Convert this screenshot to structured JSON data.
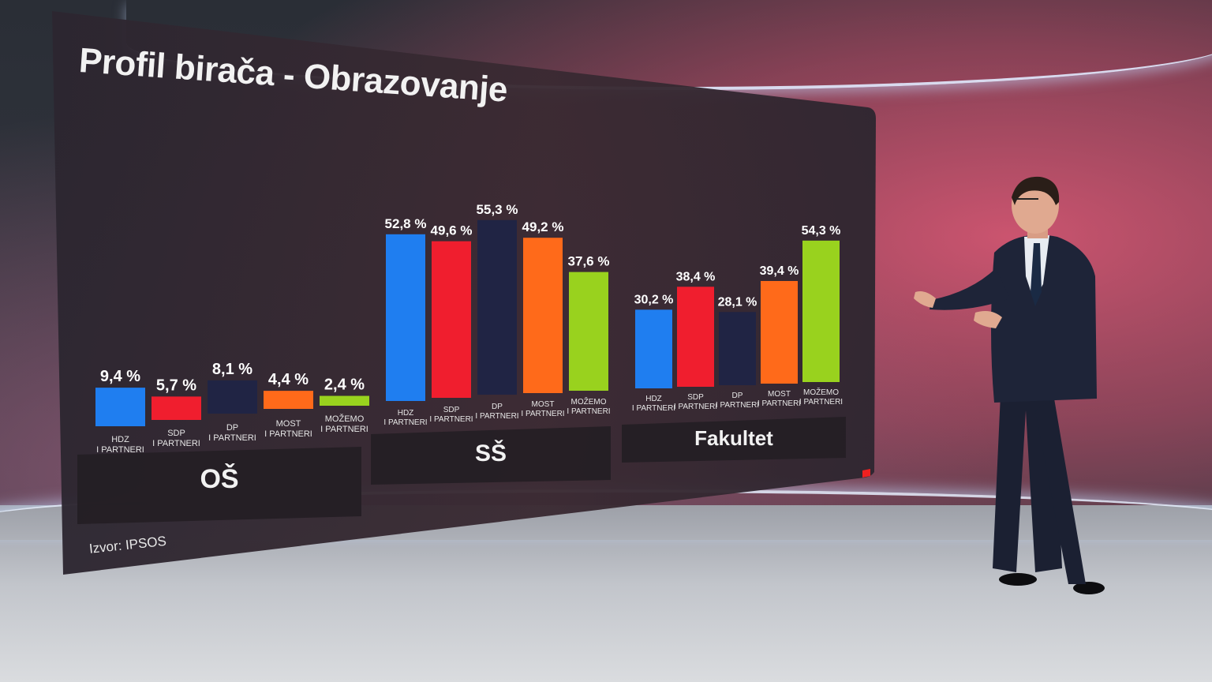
{
  "title": "Profil birača - Obrazovanje",
  "source": "Izvor: IPSOS",
  "colors": {
    "HDZ": "#1f7ef0",
    "SDP": "#f01e2e",
    "DP": "#202444",
    "MOST": "#ff6a1a",
    "MOZEMO": "#99d21e"
  },
  "chart_data": {
    "type": "bar",
    "title": "Profil birača - Obrazovanje",
    "parties": [
      {
        "key": "HDZ",
        "line1": "HDZ",
        "line2": "I PARTNERI"
      },
      {
        "key": "SDP",
        "line1": "SDP",
        "line2": "I PARTNERI"
      },
      {
        "key": "DP",
        "line1": "DP",
        "line2": "I PARTNERI"
      },
      {
        "key": "MOST",
        "line1": "MOST",
        "line2": "I PARTNERI"
      },
      {
        "key": "MOZEMO",
        "line1": "MOŽEMO",
        "line2": "I PARTNERI"
      }
    ],
    "groups": [
      {
        "name": "OŠ",
        "values": [
          9.4,
          5.7,
          8.1,
          4.4,
          2.4
        ],
        "labels": [
          "9,4 %",
          "5,7 %",
          "8,1 %",
          "4,4 %",
          "2,4 %"
        ]
      },
      {
        "name": "SŠ",
        "values": [
          52.8,
          49.6,
          55.3,
          49.2,
          37.6
        ],
        "labels": [
          "52,8 %",
          "49,6 %",
          "55,3 %",
          "49,2 %",
          "37,6 %"
        ]
      },
      {
        "name": "Fakultet",
        "values": [
          30.2,
          38.4,
          28.1,
          39.4,
          54.3
        ],
        "labels": [
          "30,2 %",
          "38,4 %",
          "28,1 %",
          "39,4 %",
          "54,3 %"
        ]
      }
    ]
  }
}
